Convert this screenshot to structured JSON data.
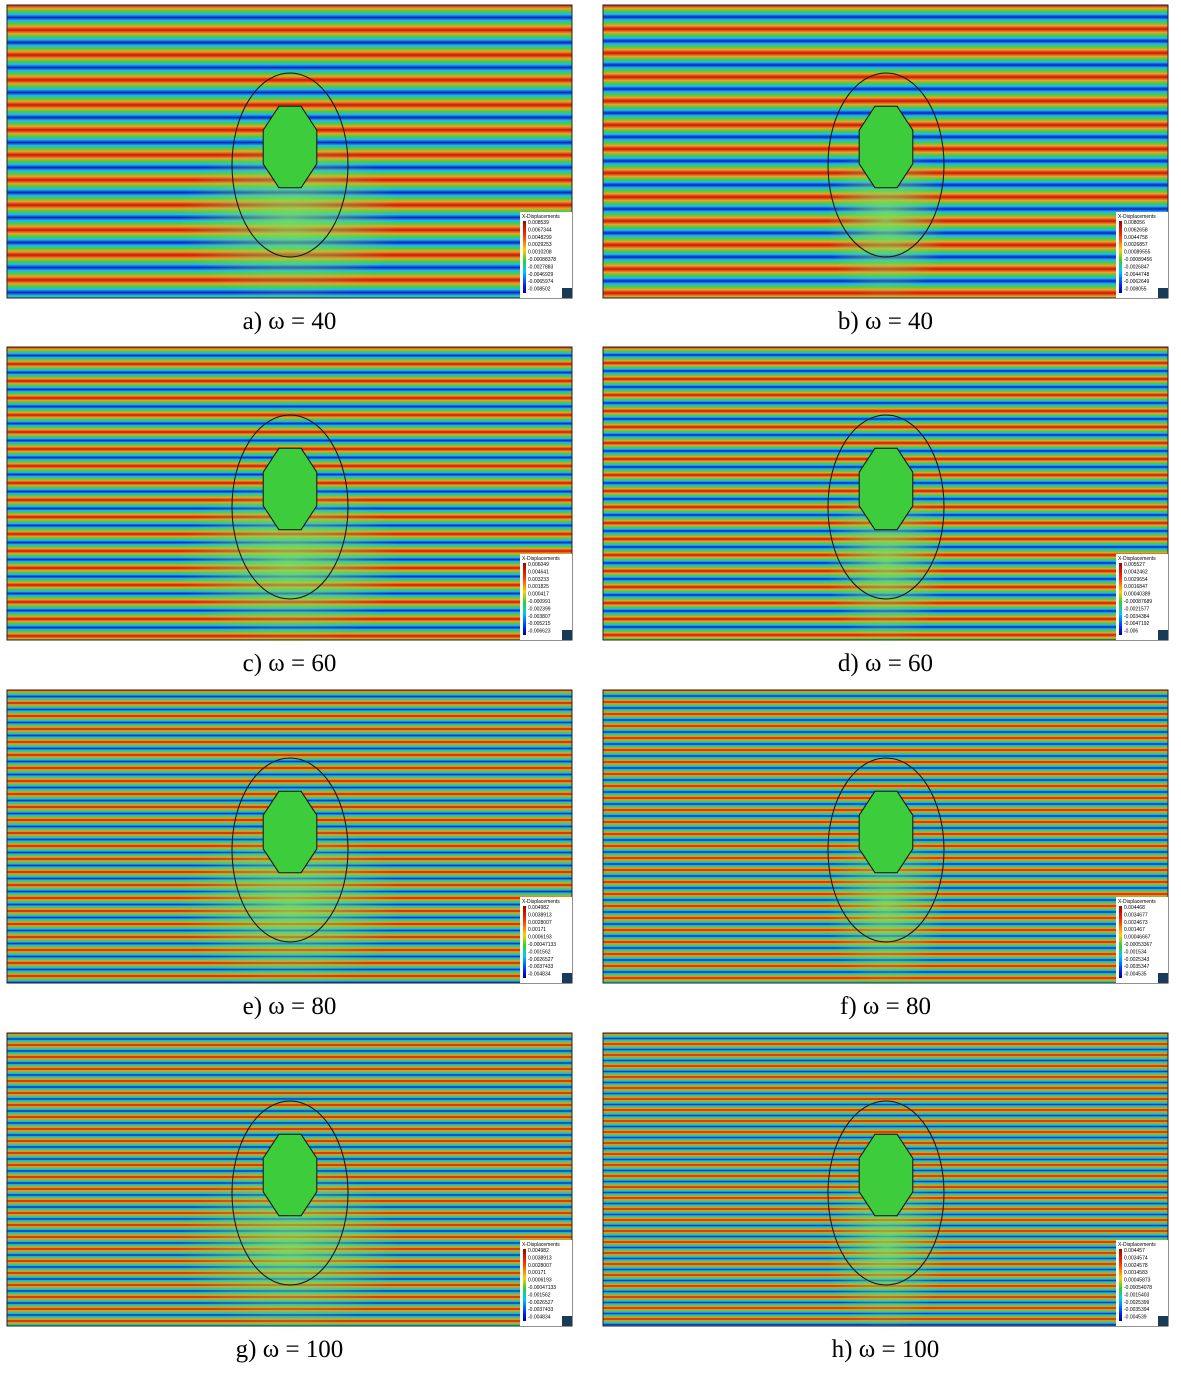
{
  "panels": [
    {
      "caption": "a) ω = 40",
      "legend": {
        "title": "X-Displacements",
        "labels": [
          "0.008539",
          "0.0067344",
          "0.0048299",
          "0.0029253",
          "0.0010208",
          "-0.00088378",
          "-0.0027883",
          "-0.0046929",
          "-0.0065974",
          "-0.008502"
        ]
      }
    },
    {
      "caption": "b) ω = 40",
      "legend": {
        "title": "X-Displacements",
        "labels": [
          "0.008056",
          "0.0062658",
          "0.0044758",
          "0.0026857",
          "0.00089555",
          "-0.00089456",
          "-0.0026847",
          "-0.0044748",
          "-0.0062649",
          "-0.008055"
        ]
      }
    },
    {
      "caption": "c) ω = 60",
      "legend": {
        "title": "X-Displacements",
        "labels": [
          "0.006049",
          "0.004641",
          "0.003233",
          "0.001825",
          "0.000417",
          "-0.000991",
          "-0.002399",
          "-0.003807",
          "-0.005215",
          "-0.006623"
        ]
      }
    },
    {
      "caption": "d) ω = 60",
      "legend": {
        "title": "X-Displacements",
        "labels": [
          "0.005527",
          "0.0042462",
          "0.0029654",
          "0.0016847",
          "0.00040389",
          "-0.00087689",
          "-0.0021577",
          "-0.0034384",
          "-0.0047192",
          "-0.006"
        ]
      }
    },
    {
      "caption": "e) ω = 80",
      "legend": {
        "title": "X-Displacements",
        "labels": [
          "0.004982",
          "0.0038913",
          "0.0028007",
          "0.00171",
          "0.0006193",
          "-0.00047133",
          "-0.001562",
          "-0.0026527",
          "-0.0037433",
          "-0.004834"
        ]
      }
    },
    {
      "caption": "f) ω = 80",
      "legend": {
        "title": "X-Displacements",
        "labels": [
          "0.004468",
          "0.0034677",
          "0.0024673",
          "0.001467",
          "0.00046667",
          "-0.00053367",
          "-0.001534",
          "-0.0025343",
          "-0.0035347",
          "-0.004535"
        ]
      }
    },
    {
      "caption": "g) ω = 100",
      "legend": {
        "title": "X-Displacements",
        "labels": [
          "0.004982",
          "0.0038913",
          "0.0028007",
          "0.00171",
          "0.0006193",
          "-0.00047133",
          "-0.001562",
          "-0.0026527",
          "-0.0037433",
          "-0.004834"
        ]
      }
    },
    {
      "caption": "h) ω = 100",
      "legend": {
        "title": "X-Displacements",
        "labels": [
          "0.004457",
          "0.0034574",
          "0.0024578",
          "0.0014583",
          "0.00045873",
          "-0.00054078",
          "-0.0015403",
          "-0.0025399",
          "-0.0035394",
          "-0.004539"
        ]
      }
    }
  ]
}
